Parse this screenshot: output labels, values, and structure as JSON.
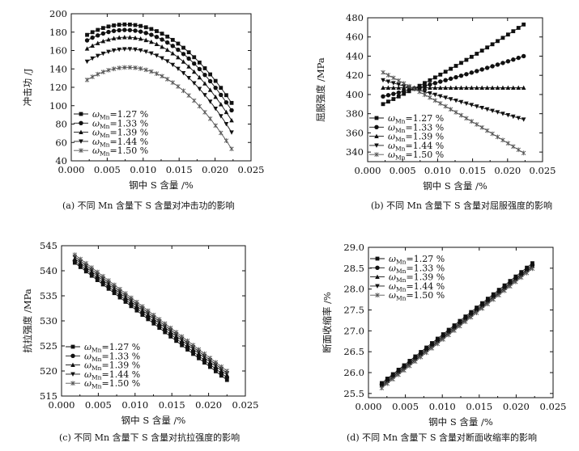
{
  "figure": {
    "series_names": [
      "ωMn=1.27 %",
      "ωMn=1.33 %",
      "ωMn=1.39 %",
      "ωMn=1.44 %",
      "ωMn=1.50 %"
    ],
    "legend_symbol": "ω",
    "legend_subscript": "Mn",
    "legend_values": [
      "=1.27 %",
      "=1.33 %",
      "=1.39 %",
      "=1.44 %",
      "=1.50 %"
    ],
    "marker_icons": [
      "square-marker-icon",
      "circle-marker-icon",
      "triangle-up-marker-icon",
      "triangle-down-marker-icon",
      "star-marker-icon"
    ]
  },
  "chart_data": [
    {
      "id": "a",
      "type": "line",
      "caption": "(a) 不同 Mn 含量下 S 含量对冲击功的影响",
      "xlabel": "钢中 S 含量 /%",
      "ylabel": "冲击功 /J",
      "xlim": [
        0.0,
        0.025
      ],
      "ylim": [
        40,
        200
      ],
      "xticks": [
        "0.000",
        "0.005",
        "0.010",
        "0.015",
        "0.020",
        "0.025"
      ],
      "yticks": [
        "40",
        "60",
        "80",
        "100",
        "120",
        "140",
        "160",
        "180",
        "200"
      ],
      "legend_position": "bottom-left",
      "x": [
        0.0022,
        0.0066,
        0.0223
      ],
      "series": [
        {
          "name": "ωMn=1.27 %",
          "values": [
            177,
            188,
            103
          ]
        },
        {
          "name": "ωMn=1.33 %",
          "values": [
            171,
            182,
            95
          ]
        },
        {
          "name": "ωMn=1.39 %",
          "values": [
            162,
            174,
            84
          ]
        },
        {
          "name": "ωMn=1.44 %",
          "values": [
            148,
            161,
            71
          ]
        },
        {
          "name": "ωMn=1.50 %",
          "values": [
            128,
            141,
            53
          ]
        }
      ]
    },
    {
      "id": "b",
      "type": "line",
      "caption": "(b) 不同 Mn 含量下 S 含量对屈服强度的影响",
      "xlabel": "钢中 S 含量 /%",
      "ylabel": "屈服强度 /MPa",
      "xlim": [
        0.0,
        0.025
      ],
      "ylim": [
        330,
        480
      ],
      "xticks": [
        "0.000",
        "0.005",
        "0.010",
        "0.015",
        "0.020",
        "0.025"
      ],
      "yticks": [
        "340",
        "360",
        "380",
        "400",
        "420",
        "440",
        "460",
        "480"
      ],
      "legend_position": "bottom-left",
      "x": [
        0.0022,
        0.0066,
        0.0223
      ],
      "series": [
        {
          "name": "ωMn=1.27 %",
          "values": [
            390,
            406,
            473
          ]
        },
        {
          "name": "ωMn=1.33 %",
          "values": [
            398,
            406,
            440
          ]
        },
        {
          "name": "ωMn=1.39 %",
          "values": [
            407,
            407,
            407
          ]
        },
        {
          "name": "ωMn=1.44 %",
          "values": [
            415,
            406,
            374
          ]
        },
        {
          "name": "ωMn=1.50 %",
          "values": [
            423,
            406,
            339
          ]
        }
      ]
    },
    {
      "id": "c",
      "type": "line",
      "caption": "(c) 不同 Mn 含量下 S 含量对抗拉强度的影响",
      "xlabel": "钢中 S 含量 /%",
      "ylabel": "抗拉强度 /MPa",
      "xlim": [
        0.0,
        0.025
      ],
      "ylim": [
        515,
        545
      ],
      "xticks": [
        "0.000",
        "0.005",
        "0.010",
        "0.015",
        "0.020",
        "0.025"
      ],
      "yticks": [
        "515",
        "520",
        "525",
        "530",
        "535",
        "540",
        "545"
      ],
      "legend_position": "bottom-left",
      "x": [
        0.0018,
        0.0225
      ],
      "series": [
        {
          "name": "ωMn=1.27 %",
          "values": [
            541.6,
            518.2
          ]
        },
        {
          "name": "ωMn=1.33 %",
          "values": [
            542.0,
            518.7
          ]
        },
        {
          "name": "ωMn=1.39 %",
          "values": [
            542.4,
            519.2
          ]
        },
        {
          "name": "ωMn=1.44 %",
          "values": [
            542.8,
            519.6
          ]
        },
        {
          "name": "ωMn=1.50 %",
          "values": [
            543.2,
            520.0
          ]
        }
      ]
    },
    {
      "id": "d",
      "type": "line",
      "caption": "(d) 不同 Mn 含量下 S 含量对断面收缩率的影响",
      "xlabel": "钢中 S 含量 /%",
      "ylabel": "断面收缩率 /%",
      "xlim": [
        0.0,
        0.025
      ],
      "ylim": [
        25.4,
        29.0
      ],
      "xticks": [
        "0.000",
        "0.005",
        "0.010",
        "0.015",
        "0.020",
        "0.025"
      ],
      "yticks": [
        "25.5",
        "26.0",
        "26.5",
        "27.0",
        "27.5",
        "28.0",
        "28.5",
        "29.0"
      ],
      "legend_position": "top-left",
      "x": [
        0.0018,
        0.0222
      ],
      "series": [
        {
          "name": "ωMn=1.27 %",
          "values": [
            25.75,
            28.62
          ]
        },
        {
          "name": "ωMn=1.33 %",
          "values": [
            25.72,
            28.58
          ]
        },
        {
          "name": "ωMn=1.39 %",
          "values": [
            25.69,
            28.55
          ]
        },
        {
          "name": "ωMn=1.44 %",
          "values": [
            25.66,
            28.52
          ]
        },
        {
          "name": "ωMn=1.50 %",
          "values": [
            25.63,
            28.49
          ]
        }
      ]
    }
  ]
}
